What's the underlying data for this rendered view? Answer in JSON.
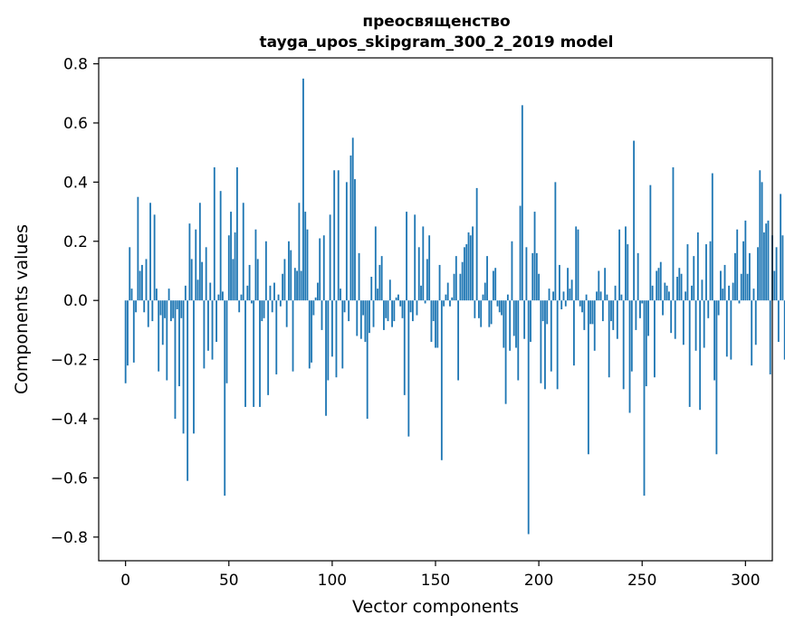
{
  "chart_data": {
    "type": "bar",
    "title": "преосвященство",
    "subtitle": "tayga_upos_skipgram_300_2_2019 model",
    "xlabel": "Vector components",
    "ylabel": "Components values",
    "xlim": [
      -13,
      313
    ],
    "ylim": [
      -0.88,
      0.82
    ],
    "xticks": [
      0,
      50,
      100,
      150,
      200,
      250,
      300
    ],
    "yticks": [
      -0.8,
      -0.6,
      -0.4,
      -0.2,
      0.0,
      0.2,
      0.4,
      0.6,
      0.8
    ],
    "ytick_labels": [
      "−0.8",
      "−0.6",
      "−0.4",
      "−0.2",
      "0.0",
      "0.2",
      "0.4",
      "0.6",
      "0.8"
    ],
    "bar_color": "#1f77b4",
    "grid": false,
    "x_start": 0,
    "values": [
      -0.28,
      -0.22,
      0.18,
      0.04,
      -0.21,
      -0.04,
      0.35,
      0.1,
      0.12,
      -0.04,
      0.14,
      -0.09,
      0.33,
      -0.07,
      0.29,
      0.04,
      -0.24,
      -0.05,
      -0.15,
      -0.06,
      -0.27,
      0.04,
      -0.07,
      -0.06,
      -0.4,
      -0.03,
      -0.29,
      -0.06,
      -0.45,
      0.05,
      -0.61,
      0.26,
      0.14,
      -0.45,
      0.24,
      0.07,
      0.33,
      0.13,
      -0.23,
      0.18,
      -0.17,
      0.06,
      -0.2,
      0.45,
      -0.14,
      0.02,
      0.37,
      0.03,
      -0.66,
      -0.28,
      0.22,
      0.3,
      0.14,
      0.23,
      0.45,
      -0.04,
      0.02,
      0.33,
      -0.36,
      0.05,
      0.12,
      -0.01,
      -0.36,
      0.24,
      0.14,
      -0.36,
      -0.07,
      -0.06,
      0.2,
      -0.32,
      0.05,
      -0.04,
      0.06,
      -0.25,
      0.02,
      -0.02,
      0.09,
      0.14,
      -0.09,
      0.2,
      0.17,
      -0.24,
      0.11,
      0.1,
      0.33,
      0.1,
      0.75,
      0.3,
      0.24,
      -0.23,
      -0.21,
      -0.05,
      0.01,
      0.06,
      0.21,
      -0.1,
      0.22,
      -0.39,
      -0.27,
      0.29,
      -0.19,
      0.44,
      -0.26,
      0.44,
      0.04,
      -0.23,
      -0.04,
      0.4,
      -0.07,
      0.49,
      0.55,
      0.41,
      -0.12,
      0.16,
      -0.13,
      -0.05,
      -0.14,
      -0.4,
      -0.11,
      0.08,
      -0.09,
      0.25,
      0.04,
      0.12,
      0.15,
      -0.1,
      -0.06,
      -0.07,
      0.07,
      -0.09,
      -0.07,
      0.01,
      0.02,
      -0.02,
      -0.06,
      -0.32,
      0.3,
      -0.46,
      -0.04,
      -0.07,
      0.29,
      -0.05,
      0.18,
      0.05,
      0.25,
      -0.01,
      0.14,
      0.22,
      -0.14,
      -0.07,
      -0.16,
      -0.16,
      0.12,
      -0.54,
      -0.02,
      0.02,
      0.06,
      -0.02,
      0.01,
      0.09,
      0.15,
      -0.27,
      0.09,
      0.13,
      0.18,
      0.19,
      0.23,
      0.22,
      0.25,
      -0.06,
      0.38,
      -0.06,
      -0.09,
      0.02,
      0.06,
      0.15,
      -0.09,
      -0.08,
      0.1,
      0.11,
      -0.02,
      -0.04,
      -0.05,
      -0.16,
      -0.35,
      0.02,
      -0.17,
      0.2,
      -0.12,
      -0.16,
      -0.27,
      0.32,
      0.66,
      -0.13,
      0.18,
      -0.79,
      -0.14,
      0.16,
      0.3,
      0.16,
      0.09,
      -0.28,
      -0.07,
      -0.3,
      -0.08,
      0.04,
      -0.24,
      0.03,
      0.4,
      -0.3,
      0.12,
      -0.03,
      0.03,
      -0.02,
      0.11,
      0.04,
      0.07,
      -0.22,
      0.25,
      0.24,
      -0.02,
      -0.04,
      -0.1,
      0.02,
      -0.52,
      -0.08,
      -0.08,
      -0.17,
      0.03,
      0.1,
      0.03,
      -0.07,
      0.11,
      0.02,
      -0.26,
      -0.07,
      -0.1,
      0.05,
      -0.13,
      0.24,
      0.02,
      -0.3,
      0.25,
      0.19,
      -0.38,
      -0.24,
      0.54,
      -0.1,
      0.16,
      -0.06,
      -0.01,
      -0.66,
      -0.29,
      -0.12,
      0.39,
      0.05,
      -0.26,
      0.1,
      0.11,
      0.13,
      -0.05,
      0.06,
      0.05,
      0.03,
      -0.11,
      0.45,
      -0.13,
      0.08,
      0.11,
      0.09,
      -0.15,
      0.03,
      0.19,
      -0.36,
      0.05,
      0.15,
      -0.17,
      0.23,
      -0.37,
      0.07,
      -0.16,
      0.19,
      -0.06,
      0.2,
      0.43,
      -0.27,
      -0.52,
      -0.05,
      0.1,
      0.04,
      0.12,
      -0.19,
      0.05,
      -0.2,
      0.06,
      0.16,
      0.24,
      -0.01,
      0.09,
      0.2,
      0.27,
      0.09,
      0.16,
      -0.22,
      0.04,
      -0.15,
      0.18,
      0.44,
      0.4,
      0.23,
      0.26,
      0.27,
      -0.25,
      0.22,
      0.1,
      0.18,
      -0.14,
      0.36,
      0.22,
      -0.2,
      0.1,
      0.03,
      -0.15
    ]
  }
}
